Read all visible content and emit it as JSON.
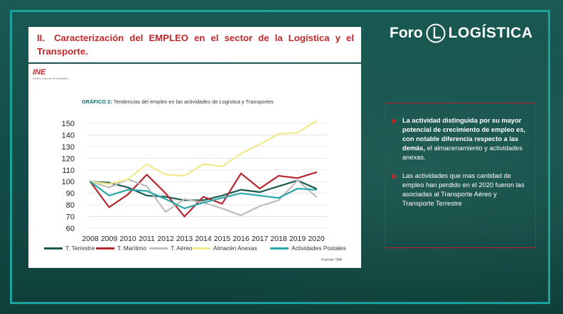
{
  "slide": {
    "title_num": "II.",
    "title": "Caracterización del EMPLEO en el sector de la Logística y el Transporte.",
    "logo_left": "Foro",
    "logo_right": "LOGÍSTICA"
  },
  "ine": {
    "mark": "INE",
    "sub": "Instituto Nacional de Estadística"
  },
  "chart_data": {
    "type": "line",
    "title_prefix": "GRÁFICO 2:",
    "title": "Tendencias del empleo en las actividades de Logística y Transportes",
    "x": [
      "2008",
      "2009",
      "2010",
      "2011",
      "2012",
      "2013",
      "2014",
      "2015",
      "2016",
      "2017",
      "2018",
      "2019",
      "2020"
    ],
    "yticks": [
      60,
      70,
      80,
      90,
      100,
      110,
      120,
      130,
      140,
      150
    ],
    "ylim": [
      60,
      155
    ],
    "grid": true,
    "legend_position": "bottom",
    "series": [
      {
        "name": "T. Terrestre",
        "color": "#1b5a50",
        "values": [
          100,
          99,
          95,
          88,
          87,
          84,
          84,
          88,
          93,
          91,
          96,
          101,
          94
        ]
      },
      {
        "name": "T. Marítimo",
        "color": "#b3272d",
        "values": [
          100,
          78,
          89,
          106,
          90,
          70,
          87,
          81,
          107,
          94,
          105,
          103,
          108
        ]
      },
      {
        "name": "T. Aéreo",
        "color": "#bdbdbd",
        "values": [
          100,
          95,
          102,
          96,
          74,
          85,
          82,
          77,
          71,
          79,
          84,
          101,
          87
        ]
      },
      {
        "name": "Almacén Anexas",
        "color": "#f2e98c",
        "values": [
          100,
          98,
          102,
          115,
          106,
          105,
          115,
          113,
          124,
          132,
          141,
          142,
          152
        ]
      },
      {
        "name": "Actividades Postales",
        "color": "#2aa7a8",
        "values": [
          100,
          88,
          93,
          92,
          85,
          77,
          82,
          86,
          90,
          88,
          86,
          94,
          93
        ]
      }
    ],
    "source": "Fuente: INE"
  },
  "text_box": {
    "p1_bold": "La actividad distinguida por su mayor potencial de crecimiento de empleo es, con notable diferencia respecto a las demás,",
    "p1_rest": " el almacenamiento y actividades anexas.",
    "p2": "Las actividades que mas cantidad de empleo han perdido en el 2020 fueron las asociadas al Transporte Aéreo y Transporte Terrestre"
  }
}
